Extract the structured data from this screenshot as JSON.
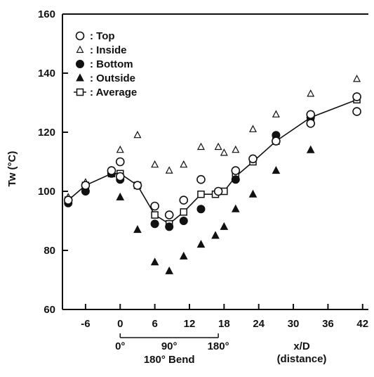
{
  "chart_data": {
    "type": "scatter",
    "title": "",
    "xlabel": "x/D",
    "xlabel_sub": "(distance)",
    "ylabel": "Tw (°C)",
    "xlim": [
      -10,
      43
    ],
    "ylim": [
      60,
      160
    ],
    "x_ticks": [
      -6,
      0,
      6,
      12,
      18,
      24,
      30,
      36,
      42
    ],
    "y_ticks": [
      60,
      80,
      100,
      120,
      140,
      160
    ],
    "grid": false,
    "legend_position": "top-left",
    "bend_annotation": {
      "x_start": 0,
      "x_end": 17,
      "angle_labels": [
        "0°",
        "90°",
        "180°"
      ],
      "label": "180° Bend"
    },
    "series": [
      {
        "name": "Top",
        "legend_label": ": Top",
        "marker": "open-circle",
        "x": [
          -9,
          -6,
          -1.5,
          0,
          0,
          3,
          6,
          8.5,
          11,
          14,
          17,
          20,
          23,
          27,
          33,
          33,
          41,
          41
        ],
        "y": [
          97,
          102,
          107,
          110,
          105,
          102,
          95,
          92,
          97,
          104,
          100,
          107,
          111,
          117,
          123,
          126,
          127,
          132
        ]
      },
      {
        "name": "Inside",
        "legend_label": ": Inside",
        "marker": "open-triangle",
        "x": [
          -9,
          -6,
          -1.5,
          0,
          3,
          6,
          8.5,
          11,
          14,
          17,
          18,
          20,
          23,
          27,
          33,
          41
        ],
        "y": [
          98,
          103,
          107,
          114,
          119,
          109,
          107,
          109,
          115,
          115,
          113,
          114,
          121,
          126,
          133,
          138
        ]
      },
      {
        "name": "Bottom",
        "legend_label": ": Bottom",
        "marker": "filled-circle",
        "x": [
          -9,
          -6,
          -1.5,
          0,
          6,
          8.5,
          11,
          14,
          20,
          27,
          33
        ],
        "y": [
          96,
          100,
          106,
          104,
          89,
          88,
          90,
          94,
          104,
          119,
          125
        ]
      },
      {
        "name": "Outside",
        "legend_label": ": Outside",
        "marker": "filled-triangle",
        "x": [
          -9,
          0,
          3,
          6,
          8.5,
          11,
          14,
          16.5,
          18,
          20,
          23,
          27,
          33
        ],
        "y": [
          97,
          98,
          87,
          76,
          73,
          78,
          82,
          85,
          88,
          94,
          99,
          107,
          114
        ]
      },
      {
        "name": "Average",
        "legend_label": ": Average",
        "marker": "open-square-line",
        "x": [
          -9,
          -6,
          -1.5,
          0,
          3,
          6,
          8.5,
          11,
          14,
          16.5,
          18,
          20,
          23,
          27,
          33,
          41
        ],
        "y": [
          97,
          102,
          106,
          106,
          102,
          92,
          89,
          93,
          99,
          99,
          100,
          105,
          110,
          117,
          125,
          131
        ]
      }
    ]
  }
}
